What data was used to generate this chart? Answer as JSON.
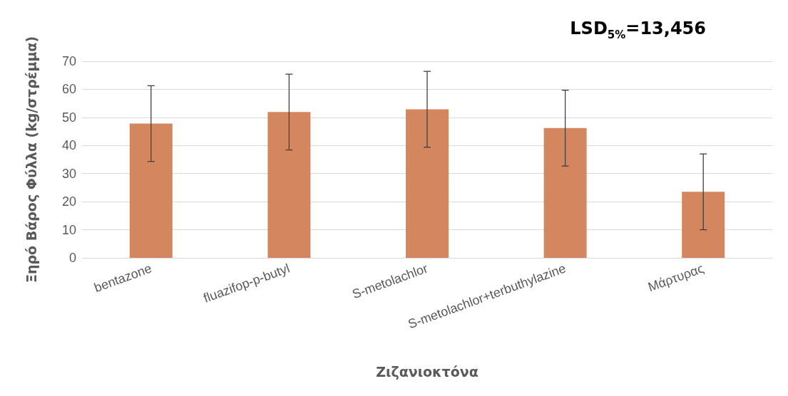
{
  "chart_data": {
    "type": "bar",
    "xlabel": "Ζιζανιοκτόνα",
    "ylabel": "Ξηρό Βάρος Φύλλα (kg/στρέμμα)",
    "annotations": [
      "LSD$_{5%}$=13,456"
    ],
    "categories": [
      "bentazone",
      "fluazifop-p-butyl",
      "S-metolachlor",
      "S-metolachlor+terbuthylazine",
      "Μάρτυρας"
    ],
    "values": [
      47.8,
      51.9,
      52.9,
      46.2,
      23.5
    ],
    "errors": [
      13.5,
      13.5,
      13.5,
      13.5,
      13.5
    ],
    "color": "#d4875f",
    "ylim": [
      0,
      70
    ],
    "yticks": [
      0,
      10,
      20,
      30,
      40,
      50,
      60,
      70
    ],
    "grid": "y"
  }
}
